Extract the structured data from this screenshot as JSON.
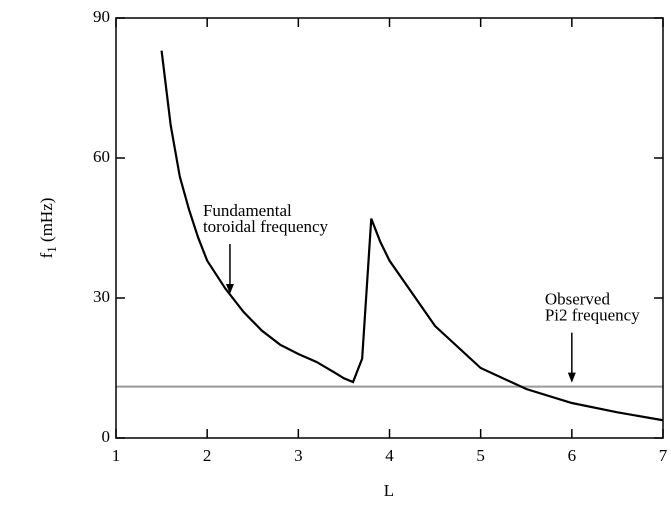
{
  "chart_data": {
    "type": "line",
    "xlabel": "L",
    "ylabel": [
      "f",
      "1",
      " (mHz)"
    ],
    "xlim": [
      1,
      7
    ],
    "xticks": [
      1,
      2,
      3,
      4,
      5,
      6,
      7
    ],
    "ylim": [
      0,
      90
    ],
    "yticks": [
      0,
      30,
      60,
      90
    ],
    "series": [
      {
        "color": "#000000",
        "x": [
          1.5,
          1.6,
          1.7,
          1.8,
          1.9,
          2.0,
          2.2,
          2.4,
          2.6,
          2.8,
          3.0,
          3.2,
          3.4,
          3.5,
          3.6,
          3.7,
          3.8,
          3.9,
          4.0,
          4.5,
          5.0,
          5.5,
          6.0,
          6.5,
          7.0
        ],
        "values": [
          83,
          67,
          56,
          49,
          43,
          38,
          32,
          27,
          23,
          20,
          18,
          16.3,
          14,
          12.8,
          12,
          17,
          47,
          42,
          38,
          24,
          15,
          10.5,
          7.5,
          5.5,
          3.8
        ]
      }
    ],
    "hline": {
      "value": 11,
      "color": "#999999"
    },
    "annotations": [
      {
        "lines": [
          "Fundamental",
          "toroidal frequency"
        ],
        "x": 2.25,
        "y": 30
      },
      {
        "lines": [
          "Observed",
          "Pi2 frequency"
        ],
        "x": 6.0,
        "y": 11
      }
    ]
  }
}
